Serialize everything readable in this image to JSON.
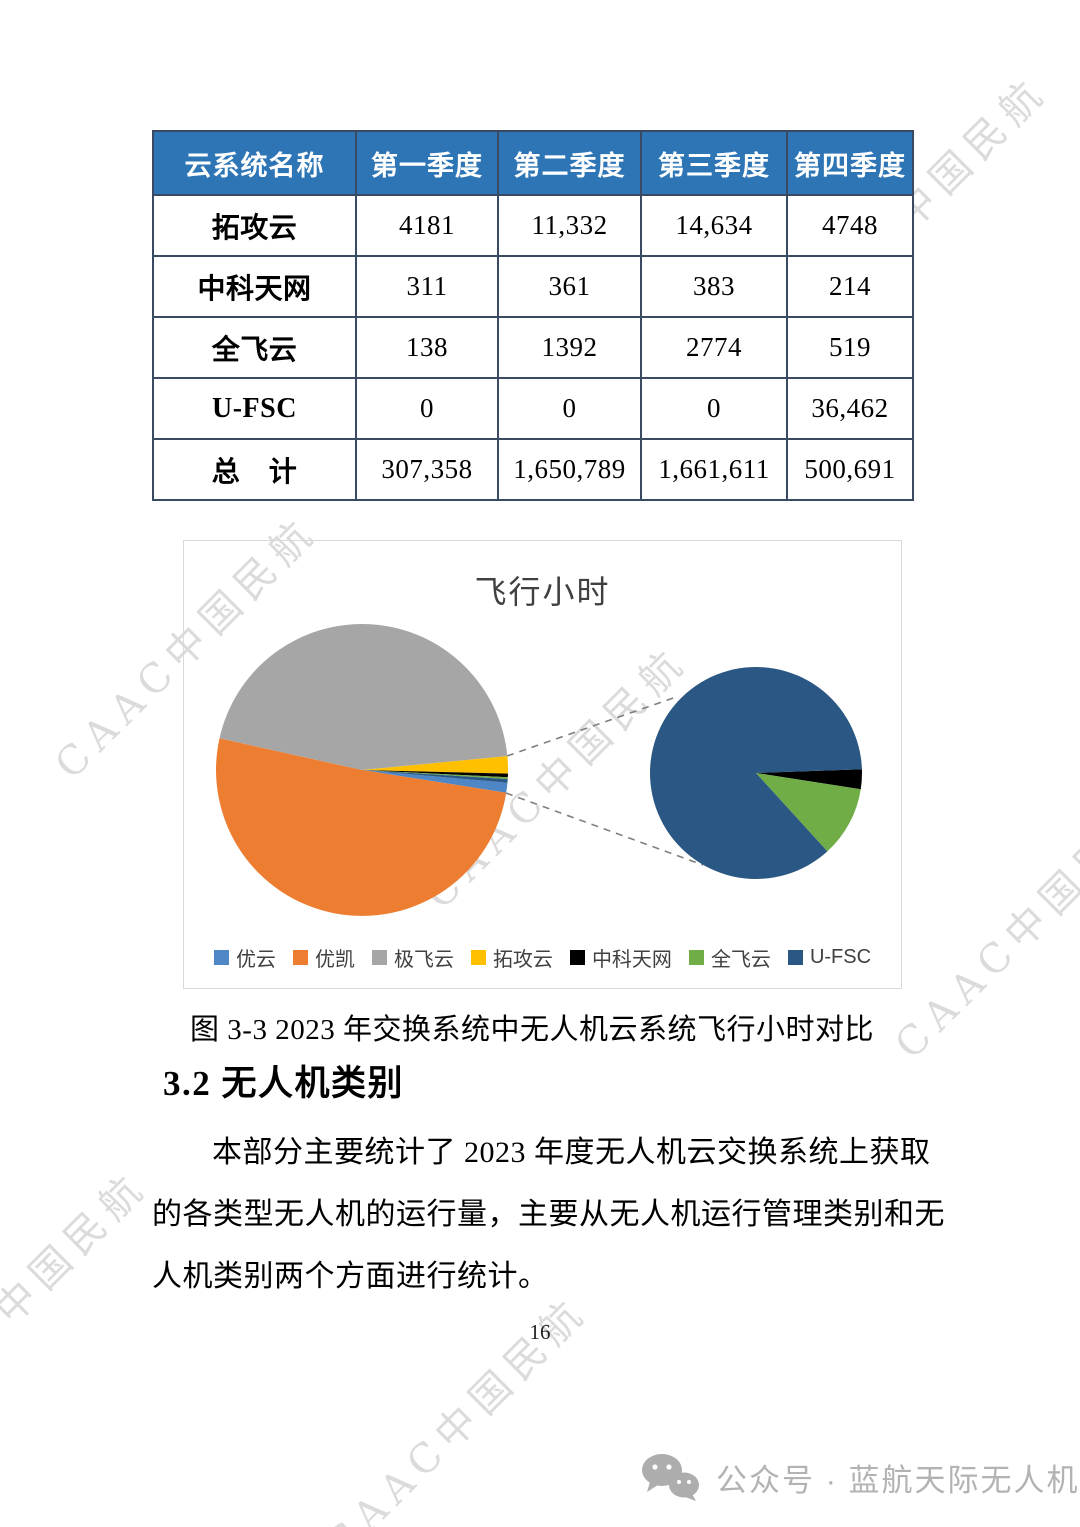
{
  "watermark": {
    "text": "CAAC中国民航"
  },
  "table": {
    "columns": [
      "云系统名称",
      "第一季度",
      "第二季度",
      "第三季度",
      "第四季度"
    ],
    "rows": [
      [
        "拓攻云",
        "4181",
        "11,332",
        "14,634",
        "4748"
      ],
      [
        "中科天网",
        "311",
        "361",
        "383",
        "214"
      ],
      [
        "全飞云",
        "138",
        "1392",
        "2774",
        "519"
      ],
      [
        "U-FSC",
        "0",
        "0",
        "0",
        "36,462"
      ],
      [
        "总　计",
        "307,358",
        "1,650,789",
        "1,661,611",
        "500,691"
      ]
    ]
  },
  "chart": {
    "title": "飞行小时",
    "caption": "图 3-3 2023 年交换系统中无人机云系统飞行小时对比"
  },
  "chart_data": [
    {
      "type": "pie",
      "title": "飞行小时",
      "legend_position": "bottom",
      "labels": [
        "优云",
        "优凯",
        "极飞云",
        "拓攻云",
        "中科天网",
        "全飞云",
        "U-FSC"
      ],
      "colors": [
        "#4E86C6",
        "#ED7D31",
        "#A6A6A6",
        "#FFC000",
        "#000000",
        "#70AD47",
        "#2A5783"
      ],
      "main_pie": {
        "start_deg": 95,
        "slices": [
          {
            "label": "优云",
            "percent": 1.1
          },
          {
            "label": "优凯",
            "percent": 51.0
          },
          {
            "label": "极飞云",
            "percent": 45.0
          },
          {
            "label": "拓攻云",
            "percent": 1.9
          },
          {
            "label": "中科天网",
            "percent": 0.4
          },
          {
            "label": "全飞云",
            "percent": 0.2
          },
          {
            "label": "U-FSC",
            "percent": 0.4
          }
        ]
      },
      "secondary_pie": {
        "start_deg": 88,
        "slices": [
          {
            "label": "中科天网",
            "percent": 3.0
          },
          {
            "label": "全飞云",
            "percent": 10.8
          },
          {
            "label": "U-FSC",
            "percent": 86.2
          }
        ]
      }
    }
  ],
  "section": {
    "heading": "3.2 无人机类别",
    "lines": [
      "本部分主要统计了 2023 年度无人机云交换系统上获取",
      "的各类型无人机的运行量，主要从无人机运行管理类别和无",
      "人机类别两个方面进行统计。"
    ]
  },
  "page": {
    "number": "16"
  },
  "footer": {
    "label": "公众号 · 蓝航天际无人机"
  }
}
